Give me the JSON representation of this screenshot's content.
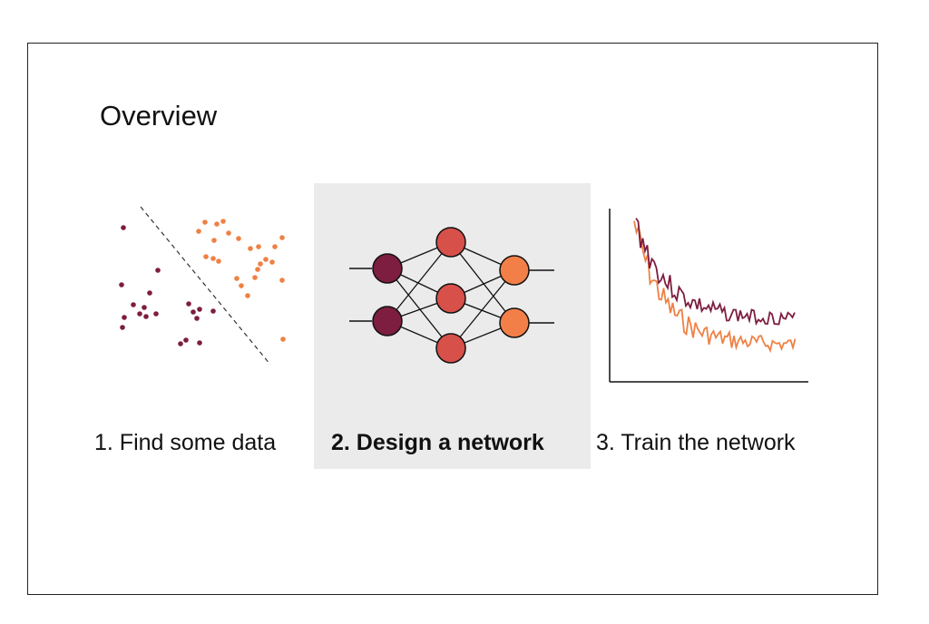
{
  "title": "Overview",
  "steps": [
    {
      "label": "1. Find some data",
      "active": false
    },
    {
      "label": "2. Design a network",
      "active": true
    },
    {
      "label": "3. Train the network",
      "active": false
    }
  ],
  "colors": {
    "class_a": "#7d1d40",
    "class_b": "#ee8144",
    "hidden": "#d7504a",
    "output": "#f27f47",
    "highlight": "#ebebeb"
  },
  "icons": {
    "data": "scatter-plot-icon",
    "network": "neural-network-icon",
    "training": "loss-curve-icon"
  }
}
